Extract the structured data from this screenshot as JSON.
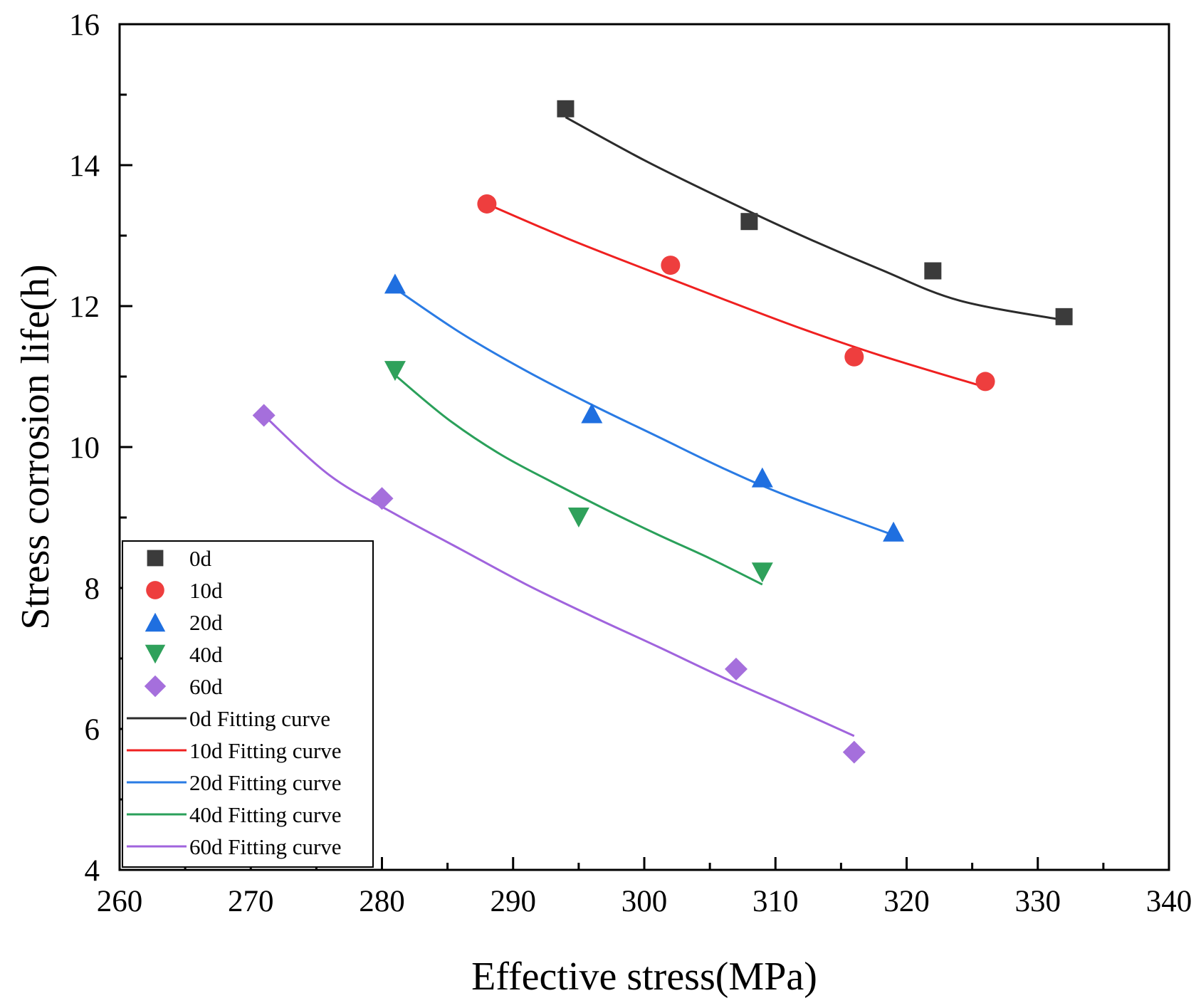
{
  "chart_data": {
    "type": "scatter",
    "title": "",
    "xlabel": "Effective stress(MPa)",
    "ylabel": "Stress corrosion life(h)",
    "xlim": [
      260,
      340
    ],
    "ylim": [
      4,
      16
    ],
    "xticks": [
      "260",
      "270",
      "280",
      "290",
      "300",
      "310",
      "320",
      "330",
      "340"
    ],
    "yticks": [
      "4",
      "6",
      "8",
      "10",
      "12",
      "14",
      "16"
    ],
    "grid": false,
    "legend_position": "bottom-left",
    "series": [
      {
        "name": "0d",
        "marker": "square",
        "color": "#3b3b3b",
        "fit_color": "#2b2b2b",
        "fit_label": "0d Fitting curve",
        "points": [
          [
            294,
            14.8
          ],
          [
            308,
            13.2
          ],
          [
            322,
            12.5
          ],
          [
            332,
            11.85
          ]
        ],
        "fit": [
          [
            294,
            14.68
          ],
          [
            300,
            14.07
          ],
          [
            306,
            13.52
          ],
          [
            312,
            13.0
          ],
          [
            318,
            12.52
          ],
          [
            324,
            12.08
          ],
          [
            332,
            11.8
          ]
        ]
      },
      {
        "name": "10d",
        "marker": "circle",
        "color": "#ee3e3e",
        "fit_color": "#ef2020",
        "fit_label": "10d Fitting curve",
        "points": [
          [
            288,
            13.45
          ],
          [
            302,
            12.58
          ],
          [
            316,
            11.28
          ],
          [
            326,
            10.93
          ]
        ],
        "fit": [
          [
            288,
            13.45
          ],
          [
            294,
            12.97
          ],
          [
            300,
            12.53
          ],
          [
            306,
            12.1
          ],
          [
            312,
            11.68
          ],
          [
            318,
            11.3
          ],
          [
            326,
            10.85
          ]
        ]
      },
      {
        "name": "20d",
        "marker": "triangle-up",
        "color": "#1f6fe0",
        "fit_color": "#2a7be4",
        "fit_label": "20d Fitting curve",
        "points": [
          [
            281,
            12.32
          ],
          [
            296,
            10.48
          ],
          [
            309,
            9.57
          ],
          [
            319,
            8.8
          ]
        ],
        "fit": [
          [
            281,
            12.25
          ],
          [
            286,
            11.62
          ],
          [
            291,
            11.08
          ],
          [
            296,
            10.6
          ],
          [
            301,
            10.15
          ],
          [
            306,
            9.7
          ],
          [
            311,
            9.3
          ],
          [
            319,
            8.75
          ]
        ]
      },
      {
        "name": "40d",
        "marker": "triangle-down",
        "color": "#2fa15b",
        "fit_color": "#2aa05a",
        "fit_label": "40d Fitting curve",
        "points": [
          [
            281,
            11.08
          ],
          [
            295,
            9.0
          ],
          [
            309,
            8.22
          ]
        ],
        "fit": [
          [
            281,
            11.02
          ],
          [
            285,
            10.4
          ],
          [
            289,
            9.9
          ],
          [
            293,
            9.5
          ],
          [
            297,
            9.12
          ],
          [
            301,
            8.76
          ],
          [
            305,
            8.42
          ],
          [
            309,
            8.05
          ]
        ]
      },
      {
        "name": "60d",
        "marker": "diamond",
        "color": "#a56fdc",
        "fit_color": "#a064dd",
        "fit_label": "60d Fitting curve",
        "points": [
          [
            271,
            10.45
          ],
          [
            280,
            9.27
          ],
          [
            307,
            6.85
          ],
          [
            316,
            5.67
          ]
        ],
        "fit": [
          [
            271,
            10.45
          ],
          [
            276,
            9.6
          ],
          [
            281,
            9.05
          ],
          [
            286,
            8.55
          ],
          [
            291,
            8.05
          ],
          [
            296,
            7.6
          ],
          [
            301,
            7.17
          ],
          [
            306,
            6.73
          ],
          [
            311,
            6.32
          ],
          [
            316,
            5.9
          ]
        ]
      }
    ]
  }
}
